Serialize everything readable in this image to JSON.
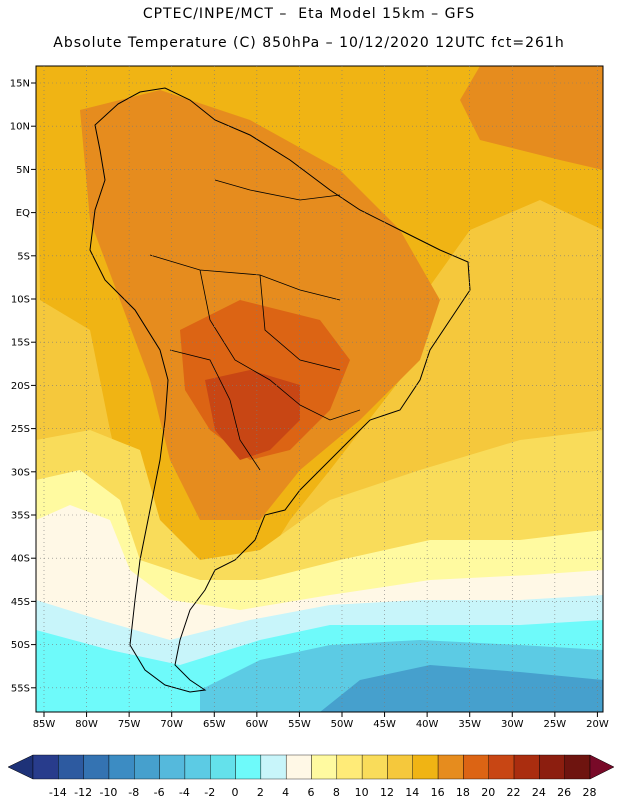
{
  "title_line1": "CPTEC/INPE/MCT –  Eta Model 15km – GFS",
  "title_line2": "Absolute Temperature (C) 850hPa – 10/12/2020 12UTC fct=261h",
  "lat_labels": [
    "15N",
    "10N",
    "5N",
    "EQ",
    "5S",
    "10S",
    "15S",
    "20S",
    "25S",
    "30S",
    "35S",
    "40S",
    "45S",
    "50S",
    "55S"
  ],
  "lon_labels": [
    "85W",
    "80W",
    "75W",
    "70W",
    "65W",
    "60W",
    "55W",
    "50W",
    "45W",
    "40W",
    "35W",
    "30W",
    "25W",
    "20W"
  ],
  "colorbar": {
    "labels": [
      "-14",
      "-12",
      "-10",
      "-8",
      "-6",
      "-4",
      "-2",
      "0",
      "2",
      "4",
      "6",
      "8",
      "10",
      "12",
      "14",
      "16",
      "18",
      "20",
      "22",
      "24",
      "26",
      "28"
    ],
    "colors": [
      "#283c8c",
      "#2d5aa0",
      "#3473b2",
      "#3c8cc3",
      "#46a0cd",
      "#55b9dc",
      "#5ccbe4",
      "#64e1eb",
      "#6efafa",
      "#c8f5fa",
      "#fff8e6",
      "#fffaa0",
      "#ffeb78",
      "#f9dc5a",
      "#f5c83c",
      "#f0b414",
      "#e68c1e",
      "#dc6414",
      "#c84614",
      "#aa2d0f",
      "#8c1e0f",
      "#6e140f"
    ],
    "low_end_color": "#1e3278",
    "high_end_color": "#780a28"
  },
  "field_colors": {
    "c8": "#fff8e6",
    "c10": "#fffaa0",
    "c12": "#ffeb78",
    "c14": "#f9dc5a",
    "c16": "#f5c83c",
    "c18": "#f0b414",
    "c20": "#e68c1e",
    "c22": "#dc6414",
    "c24": "#c84614",
    "c6": "#c8f5fa",
    "c4": "#6efafa",
    "c2": "#64e1eb",
    "c0": "#5ccbe4",
    "cm2": "#55b9dc",
    "cm4": "#46a0cd",
    "cm6": "#3c8cc3"
  }
}
